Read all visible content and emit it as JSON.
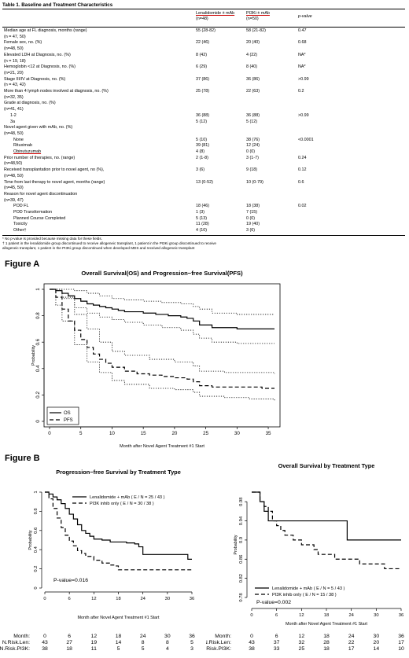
{
  "table": {
    "title": "Table 1. Baseline and Treatment Characteristics",
    "headers": {
      "len_name": "Lenalidomide ± mAb",
      "len_n": "(n=48)",
      "pi3k_name": "PI3Ki ± mAb",
      "pi3k_n": "(n=50)",
      "pvalue": "p-value"
    },
    "rows": [
      {
        "label": "Median age at FL diagnosis, months (range)",
        "len": "55 (28-82)",
        "pi3k": "58 (21-82)",
        "p": "0.47"
      },
      {
        "label": "(n = 47, 50)",
        "len": "",
        "pi3k": "",
        "p": ""
      },
      {
        "label": "Female sex, no. (%)",
        "len": "22 (46)",
        "pi3k": "20 (40)",
        "p": "0.68"
      },
      {
        "label": "(n=48, 50)",
        "len": "",
        "pi3k": "",
        "p": ""
      },
      {
        "label": "Elevated LDH at Diagnosis, no. (%)",
        "len": "8 (42)",
        "pi3k": "4 (22)",
        "p": "NA*"
      },
      {
        "label": "(n = 19, 18)",
        "len": "",
        "pi3k": "",
        "p": ""
      },
      {
        "label": "Hemoglobin <12 at Diagnosis, no. (%)",
        "len": "6 (29)",
        "pi3k": "8 (40)",
        "p": "NA*"
      },
      {
        "label": "(n=21, 20)",
        "len": "",
        "pi3k": "",
        "p": ""
      },
      {
        "label": "Stage III/IV at Diagnosis, no. (%)",
        "len": "37 (86)",
        "pi3k": "36 (86)",
        "p": ">0.99"
      },
      {
        "label": "(n = 43, 42)",
        "len": "",
        "pi3k": "",
        "p": ""
      },
      {
        "label": "More than 4 lymph nodes involved at diagnosis, no. (%)",
        "len": "25 (78)",
        "pi3k": "22 (63)",
        "p": "0.2"
      },
      {
        "label": "(n=32, 35)",
        "len": "",
        "pi3k": "",
        "p": ""
      },
      {
        "label": "Grade at diagnosis, no. (%)",
        "len": "",
        "pi3k": "",
        "p": ""
      },
      {
        "label": "(n=41, 41)",
        "len": "",
        "pi3k": "",
        "p": ""
      },
      {
        "label": "1-2",
        "len": "36 (88)",
        "pi3k": "36 (88)",
        "p": ">0.99",
        "indent": 1
      },
      {
        "label": "3a",
        "len": "5 (12)",
        "pi3k": "5 (12)",
        "p": "",
        "indent": 1
      },
      {
        "label": "Novel agent given with mAb, no. (%)",
        "len": "",
        "pi3k": "",
        "p": ""
      },
      {
        "label": "(n=48, 50)",
        "len": "",
        "pi3k": "",
        "p": ""
      },
      {
        "label": "None",
        "len": "5 (10)",
        "pi3k": "38 (76)",
        "p": "<0.0001",
        "indent": 2
      },
      {
        "label": "Rituximab",
        "len": "39 (81)",
        "pi3k": "12 (24)",
        "p": "",
        "indent": 2
      },
      {
        "label": "Obinutuzumab",
        "len": "4 (8)",
        "pi3k": "0 (0)",
        "p": "",
        "indent": 2
      },
      {
        "label": "Prior number of therapies, no. (range)",
        "len": "2 (1-8)",
        "pi3k": "3 (1-7)",
        "p": "0.24"
      },
      {
        "label": "(n=48,50)",
        "len": "",
        "pi3k": "",
        "p": ""
      },
      {
        "label": "Received transplantation prior to novel agent, no (%),",
        "len": "3 (6)",
        "pi3k": "9 (18)",
        "p": "0.12"
      },
      {
        "label": "(n=48, 50)",
        "len": "",
        "pi3k": "",
        "p": ""
      },
      {
        "label": "Time from last therapy to novel agent, months (range)",
        "len": "13 (0-52)",
        "pi3k": "10 (0-79)",
        "p": "0.6"
      },
      {
        "label": "(n=45, 50)",
        "len": "",
        "pi3k": "",
        "p": ""
      },
      {
        "label": "Reason for novel agent discontinuation",
        "len": "",
        "pi3k": "",
        "p": ""
      },
      {
        "label": "(n=39, 47)",
        "len": "",
        "pi3k": "",
        "p": ""
      },
      {
        "label": "POD FL",
        "len": "18 (46)",
        "pi3k": "18 (38)",
        "p": "0.02",
        "indent": 2
      },
      {
        "label": "POD Transformation",
        "len": "1 (3)",
        "pi3k": "7 (15)",
        "p": "",
        "indent": 2
      },
      {
        "label": "Planned Course Completed",
        "len": "5 (13)",
        "pi3k": "0 (0)",
        "p": "",
        "indent": 2
      },
      {
        "label": "Toxicity",
        "len": "11 (28)",
        "pi3k": "19 (40)",
        "p": "",
        "indent": 2
      },
      {
        "label": "Other†",
        "len": "4 (10)",
        "pi3k": "3 (6)",
        "p": "",
        "indent": 2
      }
    ],
    "footnotes": [
      "* No p-value is provided because missing data for these fields.",
      "† 1 patient in the lenalidomide group discontinued to receive allogeneic transplant, 1 patient in the PI3Ki group discontinued to receive",
      "allogeneic transplant, 1 patient in the PI3Ki group discontinued when developed MDS and received allogeneic transplant"
    ]
  },
  "figure_a_label": "Figure A",
  "figure_b_label": "Figure B",
  "chart_data": [
    {
      "type": "line",
      "title": "Overall Survival(OS) and Progression−free Survival(PFS)",
      "xlabel": "Month after Novel Agent Treatment #1 Start",
      "ylabel": "Probability",
      "xlim": [
        0,
        36
      ],
      "ylim": [
        0,
        1
      ],
      "xticks": [
        0,
        5,
        10,
        15,
        20,
        25,
        30,
        35
      ],
      "yticks": [
        0.0,
        0.2,
        0.4,
        0.6,
        0.8,
        1.0
      ],
      "legend_position": "bottom-left",
      "series": [
        {
          "name": "OS",
          "style": "solid",
          "x": [
            0,
            1,
            2,
            3,
            4,
            5,
            6,
            7,
            8,
            9,
            10,
            11,
            12,
            13,
            15,
            17,
            19,
            21,
            22,
            23,
            24,
            26,
            28,
            30,
            32,
            36
          ],
          "y": [
            1.0,
            0.99,
            0.97,
            0.95,
            0.93,
            0.91,
            0.89,
            0.88,
            0.87,
            0.86,
            0.85,
            0.84,
            0.83,
            0.83,
            0.82,
            0.81,
            0.8,
            0.79,
            0.78,
            0.76,
            0.73,
            0.71,
            0.71,
            0.7,
            0.7,
            0.7
          ]
        },
        {
          "name": "OS 95% CI upper",
          "style": "dotted",
          "x": [
            0,
            2,
            4,
            6,
            8,
            10,
            12,
            15,
            18,
            21,
            23,
            24,
            26,
            30,
            36
          ],
          "y": [
            1.0,
            1.0,
            0.99,
            0.97,
            0.95,
            0.93,
            0.92,
            0.91,
            0.9,
            0.89,
            0.87,
            0.85,
            0.82,
            0.81,
            0.81
          ]
        },
        {
          "name": "OS 95% CI lower",
          "style": "dotted",
          "x": [
            0,
            2,
            4,
            6,
            8,
            10,
            12,
            15,
            18,
            21,
            23,
            24,
            26,
            30,
            36
          ],
          "y": [
            1.0,
            0.93,
            0.86,
            0.82,
            0.79,
            0.77,
            0.75,
            0.73,
            0.71,
            0.69,
            0.66,
            0.63,
            0.6,
            0.59,
            0.59
          ]
        },
        {
          "name": "PFS",
          "style": "dashed",
          "x": [
            0,
            1,
            2,
            3,
            4,
            5,
            6,
            7,
            8,
            9,
            10,
            12,
            14,
            16,
            18,
            20,
            22,
            23,
            24,
            26,
            28,
            30,
            32,
            34,
            36
          ],
          "y": [
            1.0,
            0.94,
            0.85,
            0.76,
            0.69,
            0.62,
            0.56,
            0.51,
            0.47,
            0.44,
            0.41,
            0.38,
            0.36,
            0.35,
            0.34,
            0.33,
            0.32,
            0.3,
            0.27,
            0.26,
            0.26,
            0.26,
            0.26,
            0.25,
            0.25
          ]
        },
        {
          "name": "PFS 95% CI upper",
          "style": "dotted",
          "x": [
            0,
            1,
            2,
            4,
            6,
            8,
            10,
            12,
            16,
            20,
            23,
            24,
            28,
            32,
            36
          ],
          "y": [
            1.0,
            0.99,
            0.94,
            0.81,
            0.7,
            0.6,
            0.53,
            0.5,
            0.47,
            0.45,
            0.42,
            0.38,
            0.37,
            0.37,
            0.36
          ]
        },
        {
          "name": "PFS 95% CI lower",
          "style": "dotted",
          "x": [
            0,
            1,
            2,
            4,
            6,
            8,
            10,
            12,
            16,
            20,
            23,
            24,
            28,
            32,
            36
          ],
          "y": [
            1.0,
            0.88,
            0.76,
            0.58,
            0.45,
            0.37,
            0.31,
            0.28,
            0.25,
            0.24,
            0.22,
            0.19,
            0.18,
            0.17,
            0.15
          ]
        }
      ],
      "legend": [
        {
          "label": "OS",
          "style": "solid"
        },
        {
          "label": "PFS",
          "style": "dashed"
        }
      ]
    },
    {
      "type": "line",
      "title": "Progression−free Survival by Treatment Type",
      "xlabel": "Month after Novel Agent Treatment #1 Start",
      "ylabel": "Probability",
      "xlim": [
        0,
        36
      ],
      "ylim": [
        0,
        1
      ],
      "xticks": [
        0,
        6,
        12,
        18,
        24,
        30,
        36
      ],
      "yticks": [
        0.0,
        0.2,
        0.4,
        0.6,
        0.8,
        1.0
      ],
      "legend_position": "top-right",
      "series": [
        {
          "name": "Lenalidomide + mAb  ( E / N = 25 / 43 )",
          "style": "solid",
          "x": [
            0,
            1,
            2,
            3,
            4,
            5,
            6,
            7,
            8,
            9,
            10,
            11,
            12,
            14,
            16,
            18,
            20,
            22,
            23,
            24,
            26,
            28,
            30,
            32,
            34,
            35,
            36
          ],
          "y": [
            1.0,
            0.98,
            0.95,
            0.92,
            0.88,
            0.83,
            0.77,
            0.72,
            0.66,
            0.6,
            0.57,
            0.54,
            0.51,
            0.5,
            0.48,
            0.48,
            0.47,
            0.46,
            0.43,
            0.35,
            0.35,
            0.35,
            0.35,
            0.35,
            0.35,
            0.3,
            0.3
          ]
        },
        {
          "name": "PI3K inhib only  ( E / N = 30 / 38 )",
          "style": "dashed",
          "x": [
            0,
            1,
            2,
            3,
            4,
            5,
            6,
            7,
            8,
            9,
            10,
            12,
            14,
            16,
            17,
            18,
            20,
            22,
            24,
            26,
            28,
            30,
            32,
            34,
            36
          ],
          "y": [
            1.0,
            0.93,
            0.83,
            0.73,
            0.63,
            0.55,
            0.49,
            0.44,
            0.39,
            0.36,
            0.33,
            0.29,
            0.26,
            0.24,
            0.23,
            0.19,
            0.19,
            0.19,
            0.19,
            0.19,
            0.19,
            0.19,
            0.19,
            0.19,
            0.19
          ]
        }
      ],
      "annotation": "P-value=0.016",
      "risk_table": {
        "month_label": "Month:",
        "rows": [
          {
            "label": "N.Risk.Len:",
            "values": [
              43,
              27,
              19,
              14,
              8,
              8,
              5
            ]
          },
          {
            "label": "N.Risk.PI3K:",
            "values": [
              38,
              18,
              11,
              5,
              5,
              4,
              3
            ]
          }
        ]
      }
    },
    {
      "type": "line",
      "title": "Overall Survival by Treatment Type",
      "xlabel": "Month after Novel Agent Treatment #1 Start",
      "ylabel": "Probability",
      "xlim": [
        0,
        36
      ],
      "ylim": [
        0.78,
        1.0
      ],
      "xticks": [
        0,
        6,
        12,
        18,
        24,
        30,
        36
      ],
      "yticks": [
        0.78,
        0.82,
        0.86,
        0.9,
        0.94,
        0.98
      ],
      "legend_position": "bottom-right",
      "series": [
        {
          "name": "Lenalidomide + mAb  ( E / N = 5 / 43 )",
          "style": "solid",
          "x": [
            0,
            1,
            2,
            3,
            4,
            6,
            12,
            18,
            20,
            22,
            23,
            24,
            30,
            36
          ],
          "y": [
            1.0,
            1.0,
            0.98,
            0.96,
            0.94,
            0.94,
            0.94,
            0.94,
            0.94,
            0.94,
            0.9,
            0.9,
            0.9,
            0.9
          ]
        },
        {
          "name": "PI3K inhib only  ( E / N = 15 / 38 )",
          "style": "dashed",
          "x": [
            0,
            1,
            2,
            3,
            4,
            5,
            6,
            7,
            8,
            9,
            10,
            12,
            14,
            15,
            16,
            18,
            20,
            22,
            24,
            26,
            28,
            30,
            32,
            34,
            36
          ],
          "y": [
            1.0,
            1.0,
            0.98,
            0.97,
            0.96,
            0.94,
            0.93,
            0.92,
            0.91,
            0.91,
            0.9,
            0.89,
            0.89,
            0.88,
            0.87,
            0.87,
            0.86,
            0.86,
            0.86,
            0.85,
            0.85,
            0.85,
            0.84,
            0.84,
            0.84
          ]
        }
      ],
      "annotation": "P-value=0.002",
      "risk_table": {
        "month_label": "Month:",
        "rows": [
          {
            "label": "N.Risk.Len:",
            "values": [
              43,
              37,
              32,
              28,
              22,
              20,
              17
            ]
          },
          {
            "label": "N.Risk.PI3K:",
            "values": [
              38,
              33,
              25,
              18,
              17,
              14,
              10
            ]
          }
        ]
      }
    }
  ]
}
